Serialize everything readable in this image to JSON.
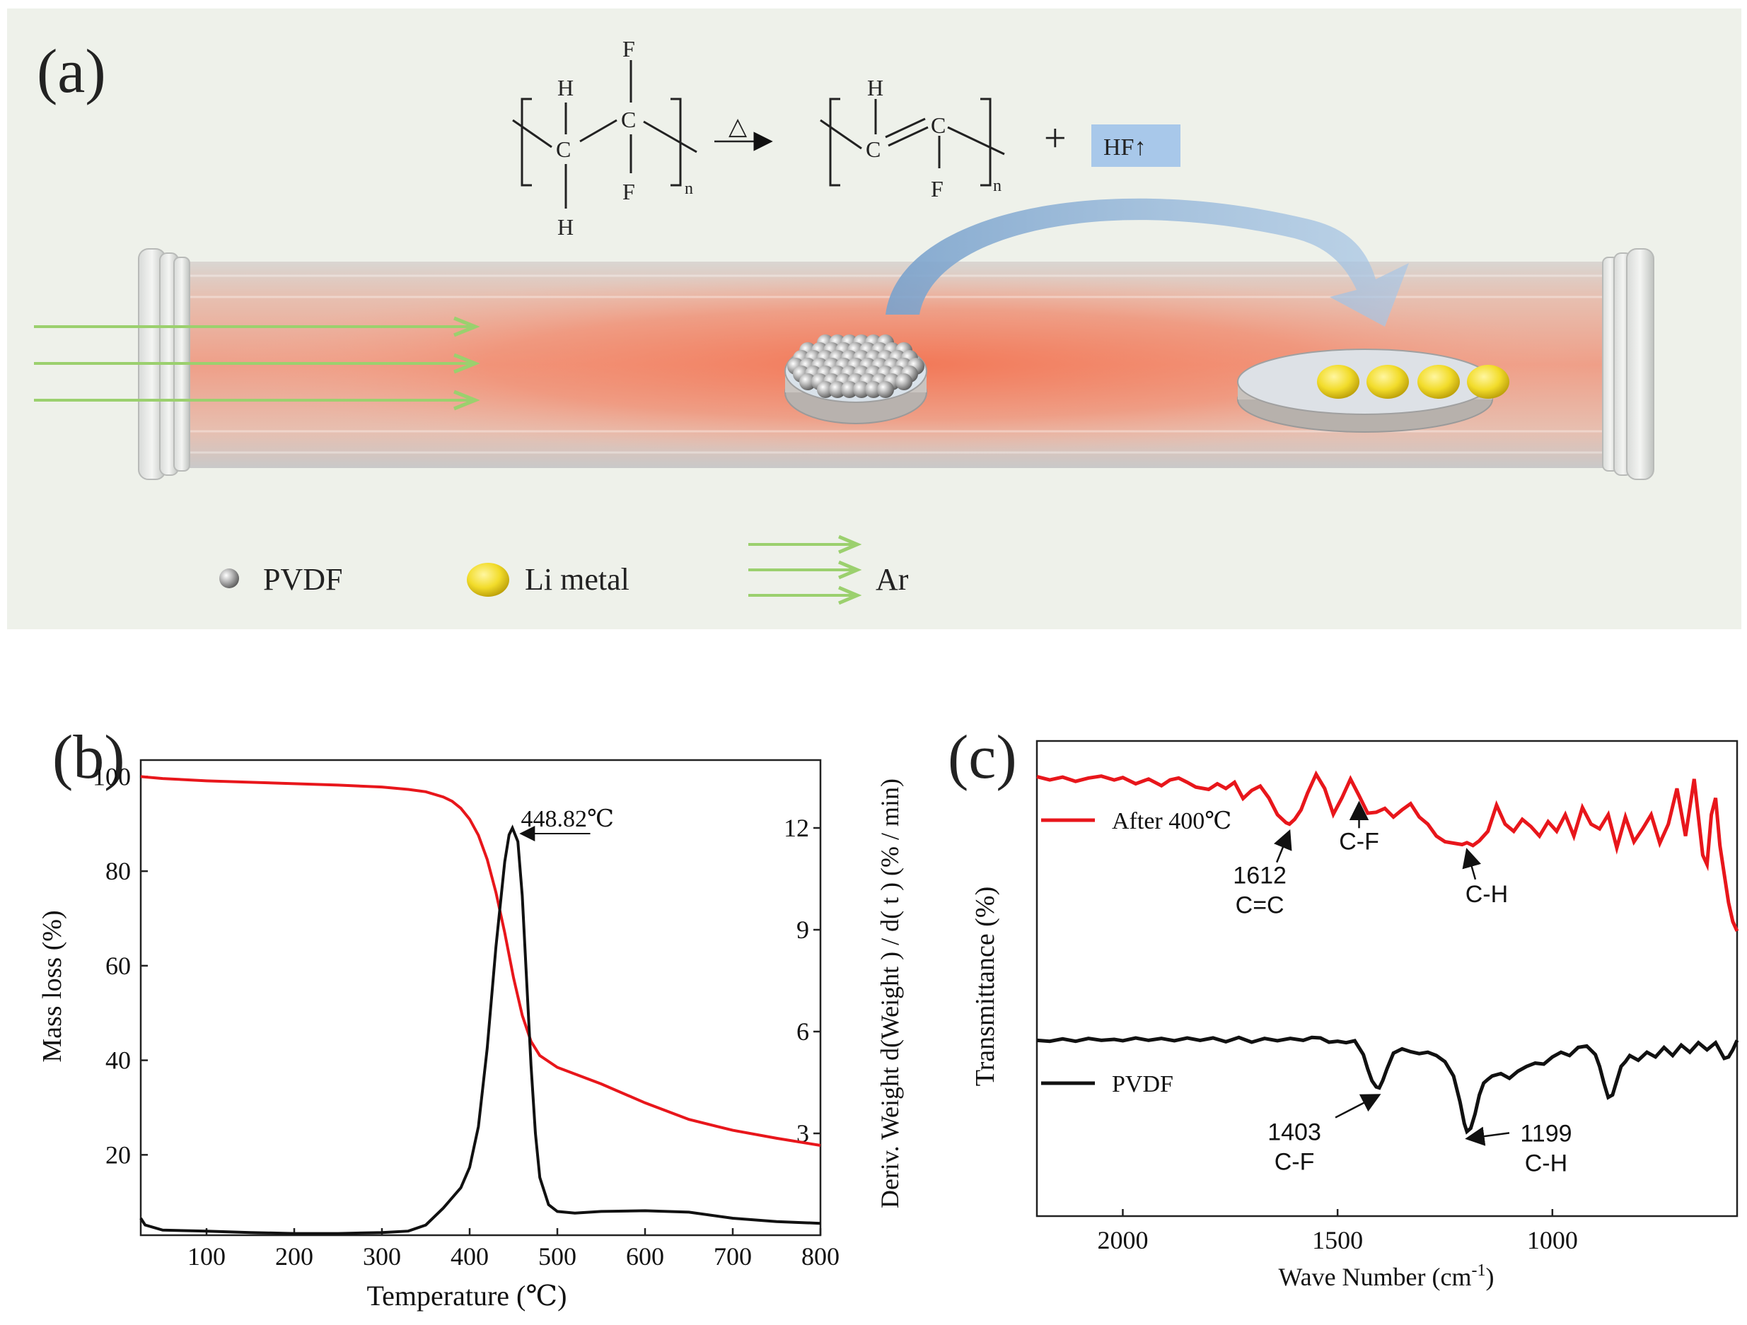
{
  "panel_a": {
    "label": "(a)",
    "reaction": {
      "reactant_atoms": {
        "h_top": "H",
        "h_bottom": "H",
        "c_left": "C",
        "c_right": "C",
        "f_top": "F",
        "f_bottom": "F",
        "n": "n"
      },
      "heat_symbol": "△",
      "product_atoms": {
        "h": "H",
        "c_left": "C",
        "c_right": "C",
        "f": "F",
        "n": "n"
      },
      "plus": "+",
      "byproduct": "HF↑"
    },
    "legend": [
      {
        "label": "PVDF",
        "icon": "pvdf-sphere-icon"
      },
      {
        "label": "Li metal",
        "icon": "li-metal-disk-icon"
      },
      {
        "label": "Ar",
        "icon": "argon-flow-arrows-icon"
      }
    ],
    "colors": {
      "background": "#eef1ea",
      "tube_glow": "#f0866a",
      "flow_arrow": "#9bd06e",
      "hf_box": "#a8c8ea",
      "li": "#f2dc2a"
    }
  },
  "chart_data": [
    {
      "type": "line",
      "panel_label": "(b)",
      "title": "",
      "xlabel": "Temperature (℃)",
      "ylabel": "Mass loss (%)",
      "y2label": "Deriv. Weight d(Weight ) / d( t ) (% / min)",
      "xlim": [
        25,
        800
      ],
      "ylim": [
        3,
        103.5
      ],
      "y2lim": [
        0,
        14
      ],
      "xticks": [
        100,
        200,
        300,
        400,
        500,
        600,
        700,
        800
      ],
      "yticks": [
        20,
        40,
        60,
        80,
        100
      ],
      "y2ticks": [
        3,
        6,
        9,
        12
      ],
      "annotation": {
        "text": "448.82℃",
        "x": 448.82
      },
      "series": [
        {
          "name": "Mass loss",
          "axis": "left",
          "color": "#e8161b",
          "x": [
            25,
            50,
            100,
            150,
            200,
            250,
            300,
            330,
            350,
            370,
            380,
            390,
            400,
            410,
            420,
            430,
            440,
            450,
            460,
            470,
            480,
            500,
            550,
            600,
            650,
            700,
            750,
            800
          ],
          "y": [
            100,
            99.6,
            99.1,
            98.8,
            98.5,
            98.2,
            97.8,
            97.3,
            96.8,
            95.7,
            94.8,
            93.3,
            91,
            87.6,
            82.5,
            75.5,
            67,
            57.5,
            49.5,
            44,
            41,
            38.5,
            35,
            31,
            27.5,
            25.2,
            23.5,
            22
          ]
        },
        {
          "name": "Deriv. Weight",
          "axis": "right",
          "color": "#111111",
          "x": [
            25,
            30,
            50,
            100,
            150,
            200,
            250,
            300,
            330,
            350,
            370,
            390,
            400,
            410,
            420,
            430,
            440,
            445,
            448.82,
            455,
            460,
            465,
            470,
            475,
            480,
            490,
            500,
            520,
            550,
            600,
            650,
            700,
            750,
            800
          ],
          "y": [
            0.5,
            0.3,
            0.15,
            0.12,
            0.08,
            0.05,
            0.05,
            0.08,
            0.12,
            0.3,
            0.8,
            1.4,
            2.0,
            3.2,
            5.5,
            8.5,
            11,
            11.8,
            12.0,
            11.6,
            10.0,
            7.5,
            5.0,
            3.0,
            1.7,
            0.9,
            0.7,
            0.65,
            0.7,
            0.72,
            0.68,
            0.5,
            0.4,
            0.35
          ]
        }
      ]
    },
    {
      "type": "line",
      "panel_label": "(c)",
      "title": "",
      "xlabel": "Wave Number (cm",
      "xlabel_sup": "-1",
      "xlabel_end": ")",
      "ylabel": "Transmittance (%)",
      "xlim": [
        2200,
        570
      ],
      "xreversed": true,
      "xticks": [
        2000,
        1500,
        1000
      ],
      "ylim": [
        0,
        100
      ],
      "legend_position": "left-inside",
      "series": [
        {
          "name": "After 400℃",
          "color": "#e8161b",
          "x": [
            2200,
            2170,
            2140,
            2110,
            2080,
            2050,
            2020,
            2000,
            1970,
            1940,
            1910,
            1890,
            1870,
            1850,
            1830,
            1800,
            1780,
            1760,
            1740,
            1720,
            1700,
            1680,
            1660,
            1640,
            1620,
            1612,
            1600,
            1585,
            1570,
            1550,
            1530,
            1510,
            1490,
            1470,
            1450,
            1430,
            1410,
            1390,
            1370,
            1350,
            1330,
            1310,
            1290,
            1270,
            1250,
            1230,
            1210,
            1199,
            1185,
            1170,
            1150,
            1130,
            1110,
            1090,
            1070,
            1050,
            1030,
            1010,
            990,
            970,
            950,
            930,
            910,
            890,
            870,
            850,
            830,
            810,
            790,
            770,
            750,
            730,
            710,
            690,
            670,
            650,
            640,
            630,
            620,
            610,
            600,
            590,
            580,
            570
          ],
          "y": [
            92.5,
            91.8,
            92.4,
            91.5,
            92.2,
            92.6,
            91.8,
            92.3,
            91.0,
            92.0,
            90.6,
            91.8,
            92.2,
            91.3,
            90.3,
            89.8,
            91.0,
            90.0,
            91.3,
            87.9,
            89.6,
            90.5,
            88.0,
            84.5,
            82.8,
            82.5,
            83.5,
            85.5,
            89.0,
            93.0,
            90.0,
            84.6,
            88.0,
            92.0,
            88.5,
            84.8,
            85.0,
            85.8,
            84.0,
            85.5,
            86.8,
            84.0,
            82.5,
            80.0,
            78.8,
            78.5,
            78.2,
            78.6,
            78.0,
            79.0,
            81.0,
            86.5,
            82.5,
            81.0,
            83.5,
            82.0,
            80.0,
            83.0,
            81.0,
            84.5,
            80.0,
            86.0,
            82.5,
            81.5,
            84.5,
            77.5,
            84.0,
            78.8,
            81.5,
            84.5,
            78.5,
            82.5,
            90.0,
            80.0,
            92.0,
            76.0,
            74.0,
            84.5,
            88.0,
            78.0,
            72.0,
            66.0,
            62.0,
            60.0
          ]
        },
        {
          "name": "PVDF",
          "color": "#111111",
          "x": [
            2200,
            2170,
            2140,
            2110,
            2080,
            2050,
            2020,
            2000,
            1970,
            1940,
            1910,
            1880,
            1850,
            1820,
            1790,
            1760,
            1730,
            1700,
            1670,
            1640,
            1610,
            1580,
            1560,
            1540,
            1520,
            1500,
            1480,
            1460,
            1440,
            1430,
            1420,
            1410,
            1403,
            1395,
            1385,
            1370,
            1350,
            1330,
            1310,
            1290,
            1270,
            1250,
            1230,
            1215,
            1205,
            1199,
            1190,
            1180,
            1170,
            1160,
            1150,
            1140,
            1120,
            1100,
            1080,
            1060,
            1040,
            1020,
            1000,
            980,
            960,
            940,
            920,
            900,
            890,
            880,
            870,
            860,
            850,
            840,
            830,
            820,
            800,
            780,
            760,
            740,
            720,
            700,
            680,
            660,
            640,
            620,
            600,
            590,
            580,
            570
          ],
          "y": [
            37.0,
            36.8,
            37.3,
            36.8,
            37.4,
            37.0,
            37.2,
            36.9,
            37.5,
            37.0,
            37.4,
            36.9,
            37.5,
            37.0,
            37.5,
            36.7,
            37.6,
            36.6,
            37.4,
            36.9,
            37.4,
            37.0,
            37.6,
            37.5,
            36.6,
            36.8,
            36.5,
            36.9,
            34.0,
            31.0,
            28.5,
            27.2,
            27.0,
            28.5,
            31.0,
            34.3,
            35.2,
            34.6,
            34.2,
            34.5,
            33.8,
            32.5,
            29.5,
            24.0,
            19.5,
            17.8,
            18.5,
            21.5,
            25.5,
            28.0,
            28.8,
            29.5,
            30.0,
            29.0,
            30.5,
            31.5,
            32.2,
            32.0,
            33.5,
            34.5,
            33.8,
            35.5,
            35.8,
            34.0,
            31.5,
            28.0,
            25.0,
            25.5,
            28.5,
            31.5,
            32.5,
            33.8,
            32.8,
            34.5,
            33.5,
            35.5,
            33.8,
            36.0,
            34.5,
            36.5,
            35.0,
            36.5,
            33.2,
            33.5,
            35.0,
            37.0
          ]
        }
      ],
      "annotations": [
        {
          "text": [
            "1612",
            "C=C"
          ],
          "x": 1612,
          "series": "After 400℃"
        },
        {
          "text": [
            "C-F"
          ],
          "x": 1450,
          "series": "After 400℃"
        },
        {
          "text": [
            "C-H"
          ],
          "x": 1199,
          "series": "After 400℃"
        },
        {
          "text": [
            "1403",
            "C-F"
          ],
          "x": 1403,
          "series": "PVDF"
        },
        {
          "text": [
            "1199",
            "C-H"
          ],
          "x": 1199,
          "series": "PVDF"
        }
      ]
    }
  ]
}
